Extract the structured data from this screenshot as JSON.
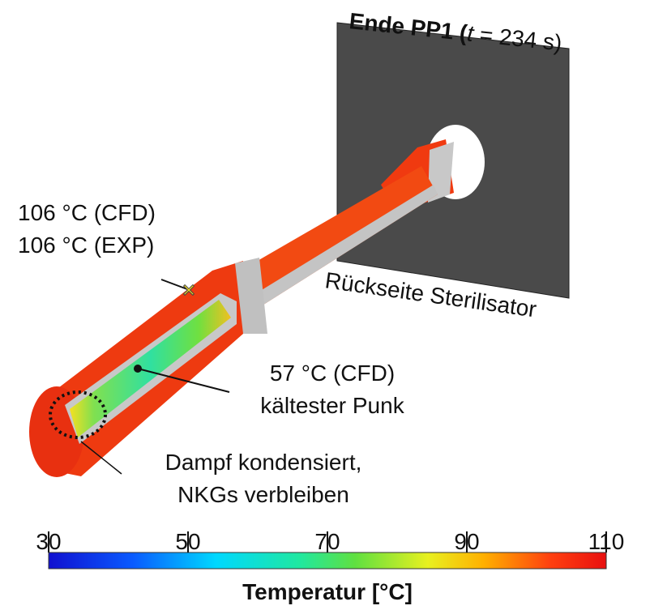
{
  "header": {
    "prefix": "Ende PP1 (",
    "variable": "t",
    "suffix": " = 234 s)"
  },
  "annotations": {
    "wall_temp": [
      "106 °C (CFD)",
      "106 °C (EXP)"
    ],
    "back_side": "Rückseite Sterilisator",
    "cold_spot": [
      "57 °C (CFD)",
      "kältester Punk"
    ],
    "condensate": [
      "Dampf kondensiert,",
      "NKGs verbleiben"
    ]
  },
  "colorbar": {
    "min": 30,
    "max": 110,
    "ticks": [
      30,
      50,
      70,
      90,
      110
    ],
    "label": "Temperatur [°C]"
  }
}
